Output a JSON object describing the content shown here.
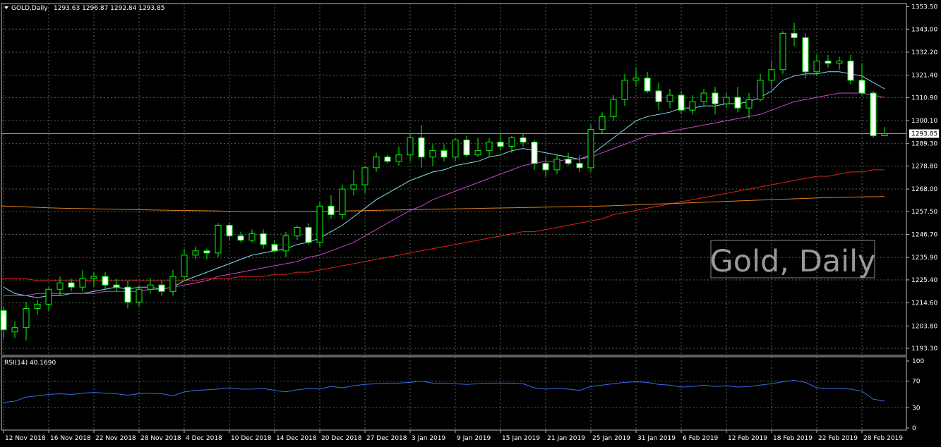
{
  "header": {
    "symbol": "GOLD,Daily",
    "ohlc": "1293.63 1296.87 1292.84 1293.85"
  },
  "watermark": "Gold, Daily",
  "current_price_label": "1293.85",
  "colors": {
    "background": "#000000",
    "grid": "#556655",
    "bull_body": "#000000",
    "bear_body": "#ffffff",
    "candle_line": "#00ff00",
    "ma_fast": "#7fe0f0",
    "ma_medium": "#d040d0",
    "ma_slow": "#e02020",
    "ma_long": "#e08020",
    "rsi": "#3a6ee8",
    "price_line": "#5fa0c0"
  },
  "chart_data": [
    {
      "type": "candlestick",
      "name": "GOLD Daily",
      "ylim": [
        1190,
        1355
      ],
      "y_ticks": [
        "1353.50",
        "1343.00",
        "1332.20",
        "1321.40",
        "1310.90",
        "1300.10",
        "1289.30",
        "1278.80",
        "1268.00",
        "1257.50",
        "1246.70",
        "1235.90",
        "1225.40",
        "1214.60",
        "1203.80",
        "1193.30"
      ],
      "x_labels": [
        "12 Nov 2018",
        "16 Nov 2018",
        "22 Nov 2018",
        "28 Nov 2018",
        "4 Dec 2018",
        "10 Dec 2018",
        "14 Dec 2018",
        "20 Dec 2018",
        "27 Dec 2018",
        "3 Jan 2019",
        "9 Jan 2019",
        "15 Jan 2019",
        "21 Jan 2019",
        "25 Jan 2019",
        "31 Jan 2019",
        "6 Feb 2019",
        "12 Feb 2019",
        "18 Feb 2019",
        "22 Feb 2019",
        "28 Feb 2019"
      ],
      "x_label_index": [
        0,
        4,
        8,
        12,
        16,
        20,
        24,
        28,
        32,
        36,
        40,
        44,
        48,
        52,
        56,
        60,
        64,
        68,
        72,
        76
      ],
      "candles": [
        [
          1211,
          1213,
          1198,
          1202
        ],
        [
          1201,
          1206,
          1198,
          1203
        ],
        [
          1203,
          1215,
          1197,
          1212
        ],
        [
          1212,
          1216,
          1209,
          1214
        ],
        [
          1214,
          1222,
          1211,
          1221
        ],
        [
          1221,
          1227,
          1218,
          1224
        ],
        [
          1224,
          1226,
          1220,
          1222
        ],
        [
          1222,
          1230,
          1220,
          1226
        ],
        [
          1226,
          1229,
          1222,
          1227
        ],
        [
          1227,
          1229,
          1221,
          1223
        ],
        [
          1223,
          1226,
          1220,
          1222
        ],
        [
          1222,
          1225,
          1212,
          1215
        ],
        [
          1215,
          1223,
          1213,
          1221
        ],
        [
          1221,
          1226,
          1219,
          1223
        ],
        [
          1223,
          1225,
          1218,
          1220
        ],
        [
          1220,
          1230,
          1218,
          1227
        ],
        [
          1227,
          1240,
          1225,
          1237
        ],
        [
          1237,
          1241,
          1235,
          1239
        ],
        [
          1239,
          1240,
          1235,
          1238
        ],
        [
          1238,
          1252,
          1236,
          1251
        ],
        [
          1251,
          1252,
          1244,
          1246
        ],
        [
          1246,
          1248,
          1243,
          1244
        ],
        [
          1244,
          1249,
          1243,
          1247
        ],
        [
          1247,
          1249,
          1240,
          1242
        ],
        [
          1242,
          1244,
          1238,
          1239
        ],
        [
          1239,
          1248,
          1236,
          1246
        ],
        [
          1246,
          1251,
          1244,
          1250
        ],
        [
          1250,
          1252,
          1242,
          1243
        ],
        [
          1243,
          1262,
          1241,
          1260
        ],
        [
          1260,
          1265,
          1254,
          1256
        ],
        [
          1256,
          1270,
          1254,
          1268
        ],
        [
          1268,
          1277,
          1265,
          1270
        ],
        [
          1270,
          1279,
          1266,
          1278
        ],
        [
          1278,
          1285,
          1276,
          1283
        ],
        [
          1283,
          1284,
          1280,
          1281
        ],
        [
          1281,
          1288,
          1279,
          1284
        ],
        [
          1284,
          1294,
          1281,
          1292
        ],
        [
          1292,
          1298,
          1278,
          1283
        ],
        [
          1283,
          1289,
          1279,
          1286
        ],
        [
          1286,
          1289,
          1281,
          1283
        ],
        [
          1283,
          1292,
          1281,
          1291
        ],
        [
          1291,
          1293,
          1283,
          1284
        ],
        [
          1284,
          1292,
          1283,
          1286
        ],
        [
          1286,
          1292,
          1283,
          1290
        ],
        [
          1290,
          1294,
          1286,
          1288
        ],
        [
          1288,
          1293,
          1285,
          1292
        ],
        [
          1292,
          1294,
          1288,
          1290
        ],
        [
          1290,
          1291,
          1277,
          1280
        ],
        [
          1280,
          1283,
          1274,
          1277
        ],
        [
          1277,
          1284,
          1275,
          1282
        ],
        [
          1282,
          1285,
          1279,
          1280
        ],
        [
          1280,
          1284,
          1276,
          1278
        ],
        [
          1278,
          1298,
          1276,
          1296
        ],
        [
          1296,
          1304,
          1294,
          1302
        ],
        [
          1302,
          1312,
          1300,
          1310
        ],
        [
          1310,
          1322,
          1307,
          1319
        ],
        [
          1319,
          1325,
          1316,
          1320
        ],
        [
          1320,
          1323,
          1313,
          1314
        ],
        [
          1314,
          1318,
          1305,
          1309
        ],
        [
          1309,
          1315,
          1306,
          1312
        ],
        [
          1312,
          1314,
          1303,
          1305
        ],
        [
          1305,
          1312,
          1303,
          1309
        ],
        [
          1309,
          1315,
          1307,
          1313
        ],
        [
          1313,
          1316,
          1303,
          1308
        ],
        [
          1308,
          1313,
          1306,
          1311
        ],
        [
          1311,
          1316,
          1304,
          1306
        ],
        [
          1306,
          1313,
          1301,
          1310
        ],
        [
          1310,
          1322,
          1309,
          1319
        ],
        [
          1319,
          1328,
          1315,
          1324
        ],
        [
          1324,
          1342,
          1322,
          1341
        ],
        [
          1341,
          1346,
          1335,
          1339
        ],
        [
          1339,
          1341,
          1320,
          1323
        ],
        [
          1323,
          1331,
          1321,
          1328
        ],
        [
          1328,
          1331,
          1325,
          1327
        ],
        [
          1327,
          1330,
          1324,
          1328
        ],
        [
          1328,
          1331,
          1317,
          1319
        ],
        [
          1319,
          1327,
          1312,
          1313
        ],
        [
          1313,
          1314,
          1292,
          1293
        ],
        [
          1293,
          1297,
          1293,
          1294
        ]
      ],
      "series": [
        {
          "name": "",
          "color_key": "ma_fast",
          "values": [
            1222,
            1219,
            1218,
            1217,
            1218,
            1218,
            1219,
            1219,
            1220,
            1221,
            1222,
            1221,
            1222,
            1222,
            1221,
            1222,
            1225,
            1227,
            1229,
            1231,
            1233,
            1235,
            1237,
            1238,
            1239,
            1240,
            1242,
            1243,
            1245,
            1248,
            1251,
            1255,
            1259,
            1263,
            1266,
            1269,
            1272,
            1274,
            1276,
            1277,
            1279,
            1280,
            1281,
            1283,
            1284,
            1286,
            1287,
            1286,
            1285,
            1284,
            1283,
            1282,
            1284,
            1288,
            1292,
            1296,
            1300,
            1302,
            1303,
            1304,
            1306,
            1306,
            1307,
            1307,
            1308,
            1308,
            1309,
            1311,
            1314,
            1319,
            1321,
            1322,
            1322,
            1323,
            1323,
            1322,
            1321,
            1318,
            1315
          ]
        },
        {
          "name": "",
          "color_key": "ma_medium",
          "values": [
            1218,
            1218,
            1218,
            1219,
            1219,
            1219,
            1219,
            1219,
            1219,
            1220,
            1220,
            1220,
            1220,
            1221,
            1221,
            1222,
            1223,
            1224,
            1225,
            1227,
            1228,
            1229,
            1230,
            1231,
            1232,
            1233,
            1234,
            1236,
            1237,
            1239,
            1241,
            1243,
            1246,
            1249,
            1252,
            1255,
            1258,
            1260,
            1263,
            1265,
            1267,
            1269,
            1271,
            1273,
            1275,
            1277,
            1279,
            1280,
            1281,
            1281,
            1282,
            1282,
            1283,
            1285,
            1287,
            1289,
            1291,
            1293,
            1294,
            1295,
            1296,
            1297,
            1298,
            1299,
            1300,
            1301,
            1302,
            1303,
            1305,
            1307,
            1309,
            1310,
            1311,
            1312,
            1313,
            1313,
            1313,
            1312,
            1311
          ]
        },
        {
          "name": "",
          "color_key": "ma_slow",
          "values": [
            1226,
            1226,
            1226,
            1225,
            1225,
            1225,
            1225,
            1225,
            1225,
            1225,
            1225,
            1225,
            1225,
            1225,
            1225,
            1225,
            1225,
            1225,
            1226,
            1226,
            1226,
            1227,
            1227,
            1227,
            1228,
            1228,
            1229,
            1229,
            1230,
            1231,
            1232,
            1233,
            1234,
            1235,
            1236,
            1237,
            1238,
            1239,
            1240,
            1241,
            1242,
            1243,
            1244,
            1245,
            1246,
            1247,
            1248,
            1248,
            1249,
            1250,
            1251,
            1252,
            1253,
            1254,
            1256,
            1257,
            1258,
            1259,
            1260,
            1261,
            1262,
            1263,
            1264,
            1265,
            1266,
            1267,
            1268,
            1269,
            1270,
            1271,
            1272,
            1273,
            1274,
            1274,
            1275,
            1276,
            1276,
            1277,
            1277
          ]
        },
        {
          "name": "",
          "color_key": "ma_long",
          "values": [
            1260,
            1259.8,
            1259.6,
            1259.4,
            1259.2,
            1259,
            1258.9,
            1258.8,
            1258.7,
            1258.6,
            1258.5,
            1258.4,
            1258.3,
            1258.2,
            1258.1,
            1258,
            1258,
            1257.9,
            1257.8,
            1257.7,
            1257.6,
            1257.5,
            1257.5,
            1257.5,
            1257.5,
            1257.5,
            1257.5,
            1257.5,
            1257.5,
            1257.6,
            1257.7,
            1257.8,
            1257.9,
            1258,
            1258.1,
            1258.2,
            1258.3,
            1258.4,
            1258.5,
            1258.6,
            1258.7,
            1258.8,
            1258.9,
            1259,
            1259.1,
            1259.2,
            1259.3,
            1259.4,
            1259.5,
            1259.6,
            1259.7,
            1259.8,
            1259.9,
            1260,
            1260.2,
            1260.4,
            1260.6,
            1260.8,
            1261,
            1261.2,
            1261.4,
            1261.6,
            1261.8,
            1262,
            1262.2,
            1262.4,
            1262.6,
            1262.8,
            1263,
            1263.2,
            1263.4,
            1263.6,
            1263.8,
            1264,
            1264.1,
            1264.2,
            1264.3,
            1264.4,
            1264.5
          ]
        }
      ]
    },
    {
      "type": "line",
      "title": "RSI(14) 40.1690",
      "ylim": [
        0,
        100
      ],
      "y_ticks": [
        "100",
        "70",
        "30",
        "0"
      ],
      "series": [
        {
          "name": "",
          "values": [
            38,
            40,
            46,
            48,
            50,
            51,
            50,
            52,
            53,
            52,
            51,
            49,
            51,
            52,
            51,
            48,
            54,
            56,
            57,
            58,
            60,
            58,
            58,
            59,
            56,
            54,
            57,
            59,
            58,
            62,
            60,
            63,
            65,
            66,
            67,
            67,
            68,
            70,
            67,
            67,
            66,
            65,
            66,
            67,
            67,
            67,
            66,
            60,
            58,
            59,
            58,
            56,
            62,
            64,
            66,
            68,
            69,
            68,
            65,
            64,
            61,
            62,
            64,
            62,
            63,
            61,
            62,
            64,
            66,
            69,
            71,
            68,
            60,
            59,
            59,
            58,
            55,
            43,
            40
          ]
        }
      ]
    }
  ]
}
